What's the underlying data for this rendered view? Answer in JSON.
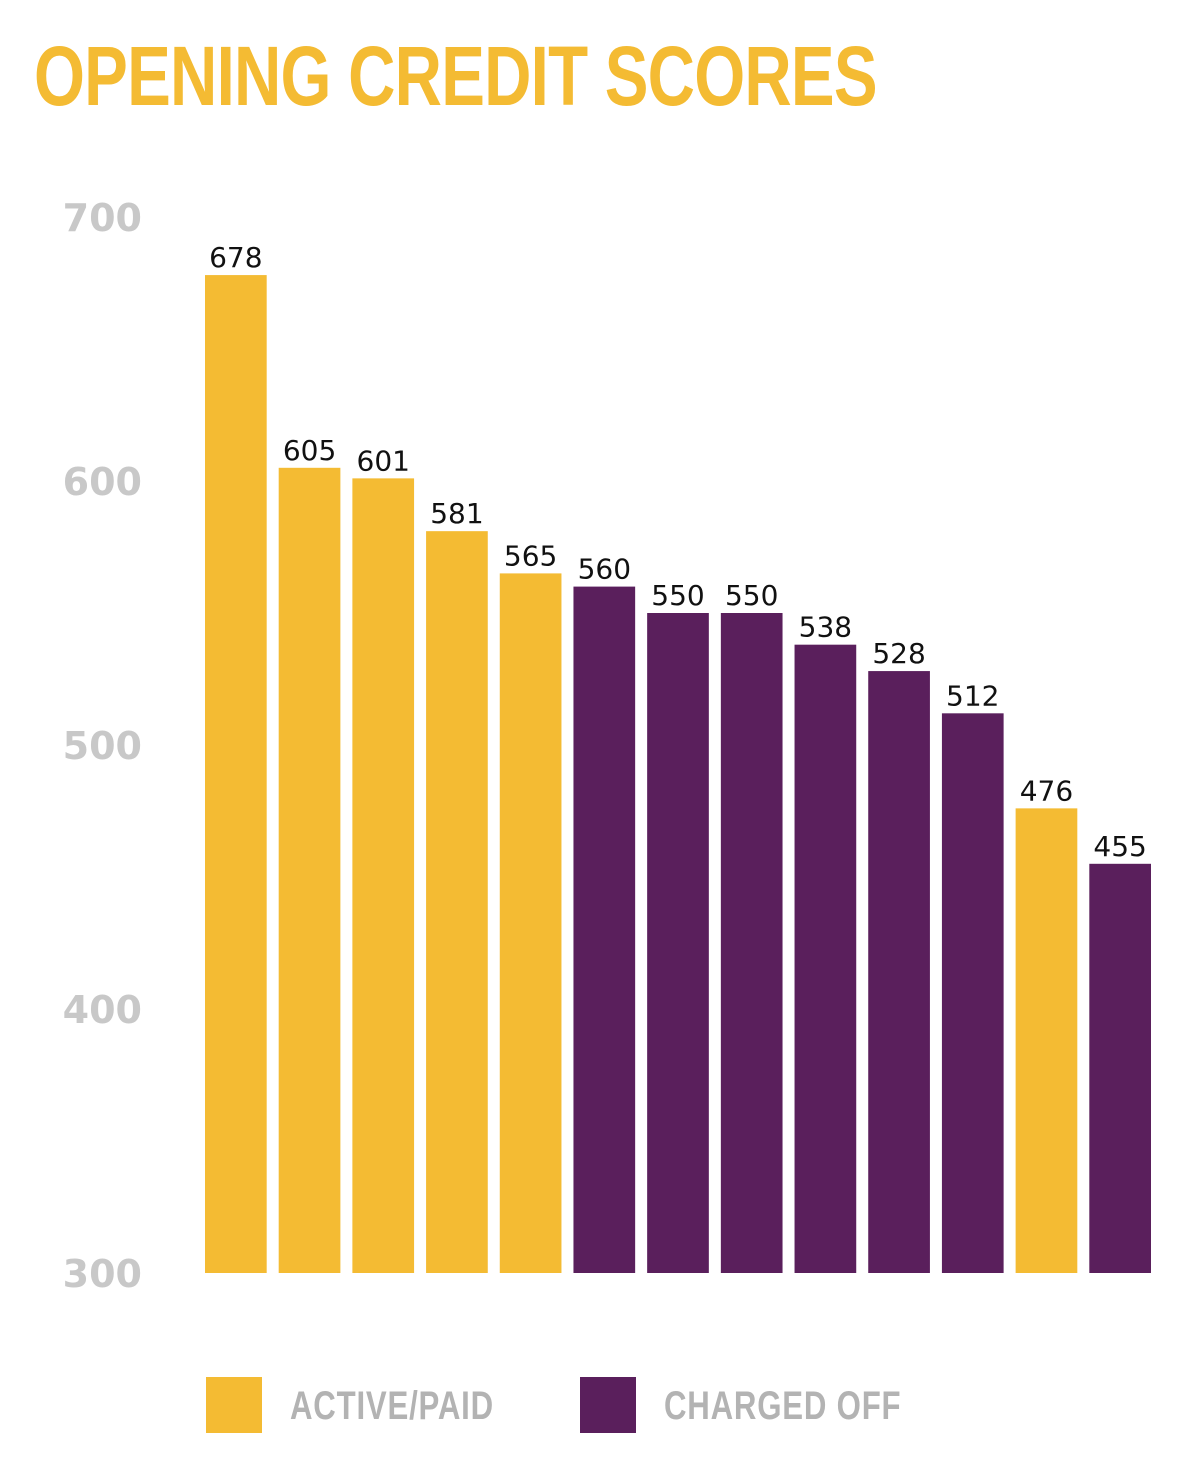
{
  "chart_data": {
    "type": "bar",
    "title": "OPENING CREDIT SCORES",
    "xlabel": "",
    "ylabel": "",
    "ylim": [
      300,
      700
    ],
    "yticks": [
      700,
      600,
      500,
      400,
      300
    ],
    "bars": [
      {
        "value": 678,
        "label": "678",
        "series": "active"
      },
      {
        "value": 605,
        "label": "605",
        "series": "active"
      },
      {
        "value": 601,
        "label": "601",
        "series": "active"
      },
      {
        "value": 581,
        "label": "581",
        "series": "active"
      },
      {
        "value": 565,
        "label": "565",
        "series": "active"
      },
      {
        "value": 560,
        "label": "560",
        "series": "charged"
      },
      {
        "value": 550,
        "label": "550",
        "series": "charged"
      },
      {
        "value": 550,
        "label": "550",
        "series": "charged"
      },
      {
        "value": 538,
        "label": "538",
        "series": "charged"
      },
      {
        "value": 528,
        "label": "528",
        "series": "charged"
      },
      {
        "value": 512,
        "label": "512",
        "series": "charged"
      },
      {
        "value": 476,
        "label": "476",
        "series": "active"
      },
      {
        "value": 455,
        "label": "455",
        "series": "charged"
      }
    ],
    "series": [
      {
        "key": "active",
        "name": "ACTIVE/PAID",
        "color": "#F4BB33"
      },
      {
        "key": "charged",
        "name": "CHARGED OFF",
        "color": "#5A1F5C"
      }
    ],
    "legend_position": "bottom"
  },
  "colors": {
    "title": "#F4BB33",
    "tick_labels": "#C8C8C8",
    "legend_text": "#B3B3B3",
    "bar_label": "#111111"
  }
}
